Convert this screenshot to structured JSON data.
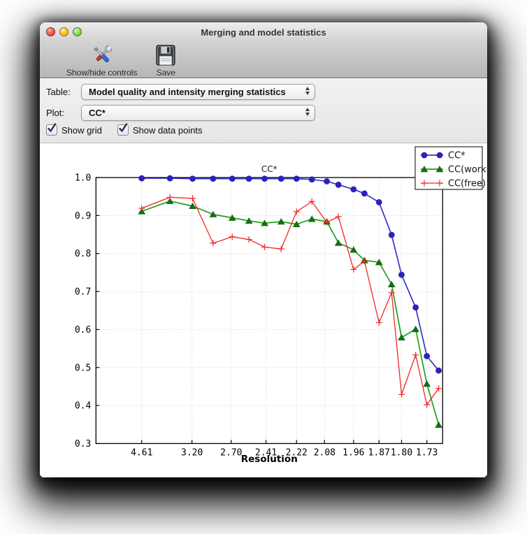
{
  "window": {
    "title": "Merging and model statistics"
  },
  "toolbar": {
    "buttons": [
      {
        "label": "Show/hide controls",
        "icon": "tools-icon"
      },
      {
        "label": "Save",
        "icon": "save-icon"
      }
    ]
  },
  "controls": {
    "table_label": "Table:",
    "table_value": "Model quality and intensity merging statistics",
    "plot_label": "Plot:",
    "plot_value": "CC*",
    "checkboxes": [
      {
        "label": "Show grid",
        "checked": true
      },
      {
        "label": "Show data points",
        "checked": true
      }
    ]
  },
  "chart_data": {
    "type": "line",
    "title": "CC*",
    "xlabel": "Resolution",
    "grid": true,
    "legend_position": "upper right",
    "ylim": [
      0.3,
      1.0
    ],
    "yticks": [
      "1.0",
      "0.9",
      "0.8",
      "0.7",
      "0.6",
      "0.5",
      "0.4",
      "0.3"
    ],
    "x_axis": {
      "note": "resolution d-spacing in Angstrom, axis linear in 1/d^2, high resolution to the right",
      "tick_labels": [
        "4.61",
        "3.20",
        "2.70",
        "2.41",
        "2.22",
        "2.08",
        "1.96",
        "1.87",
        "1.80",
        "1.73"
      ],
      "tick_d": [
        4.61,
        3.2,
        2.7,
        2.41,
        2.22,
        2.08,
        1.96,
        1.87,
        1.8,
        1.73
      ],
      "xlim_inv_d2": [
        0.001,
        0.35
      ]
    },
    "d_spacing": [
      4.61,
      3.64,
      3.19,
      2.9,
      2.69,
      2.54,
      2.42,
      2.31,
      2.22,
      2.14,
      2.07,
      2.02,
      1.96,
      1.92,
      1.87,
      1.83,
      1.8,
      1.76,
      1.73,
      1.7
    ],
    "series": [
      {
        "name": "CC*",
        "color": "#3a31c8",
        "marker": "circle",
        "marker_color": "#2b22bb",
        "values": [
          0.998,
          0.998,
          0.997,
          0.997,
          0.997,
          0.997,
          0.997,
          0.997,
          0.997,
          0.995,
          0.99,
          0.981,
          0.969,
          0.958,
          0.935,
          0.849,
          0.744,
          0.658,
          0.53,
          0.492
        ]
      },
      {
        "name": "CC(work)",
        "color": "#1da11d",
        "marker": "triangle",
        "marker_color": "#156e15",
        "values": [
          0.911,
          0.938,
          0.925,
          0.903,
          0.894,
          0.886,
          0.88,
          0.884,
          0.877,
          0.891,
          0.884,
          0.828,
          0.81,
          0.782,
          0.777,
          0.719,
          0.579,
          0.601,
          0.457,
          0.349
        ]
      },
      {
        "name": "CC(free)",
        "color": "#f42525",
        "marker": "plus",
        "marker_color": "#f42525",
        "values": [
          0.919,
          0.948,
          0.945,
          0.827,
          0.844,
          0.837,
          0.817,
          0.812,
          0.91,
          0.937,
          0.882,
          0.897,
          0.758,
          0.78,
          0.618,
          0.697,
          0.429,
          0.533,
          0.402,
          0.445
        ]
      }
    ]
  }
}
